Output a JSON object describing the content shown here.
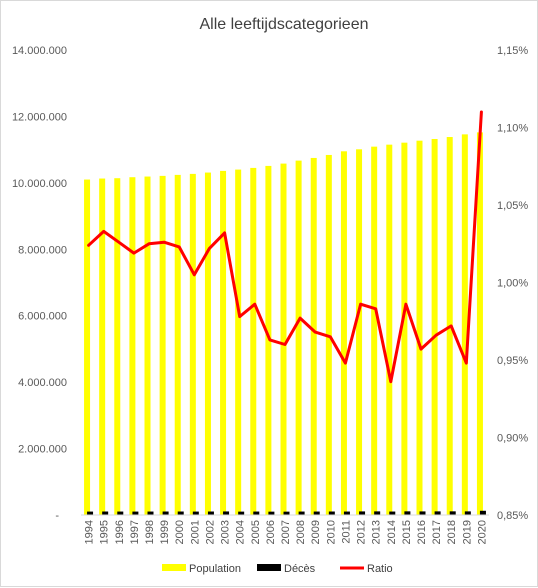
{
  "chart_data": {
    "type": "bar",
    "title": "Alle leeftijdscategorieen",
    "categories": [
      "1994",
      "1995",
      "1996",
      "1997",
      "1998",
      "1999",
      "2000",
      "2001",
      "2002",
      "2003",
      "2004",
      "2005",
      "2006",
      "2007",
      "2008",
      "2009",
      "2010",
      "2011",
      "2012",
      "2013",
      "2014",
      "2015",
      "2016",
      "2017",
      "2018",
      "2019",
      "2020"
    ],
    "left_axis": {
      "ylim": [
        0,
        14000000
      ],
      "ticks": [
        0,
        2000000,
        4000000,
        6000000,
        8000000,
        10000000,
        12000000,
        14000000
      ],
      "tick_labels": [
        "-",
        "2.000.000",
        "4.000.000",
        "6.000.000",
        "8.000.000",
        "10.000.000",
        "12.000.000",
        "14.000.000"
      ]
    },
    "right_axis": {
      "ylim": [
        0.85,
        1.15
      ],
      "ticks": [
        0.85,
        0.9,
        0.95,
        1.0,
        1.05,
        1.1,
        1.15
      ],
      "tick_labels": [
        "0,85%",
        "0,90%",
        "0,95%",
        "1,00%",
        "1,05%",
        "1,10%",
        "1,15%"
      ]
    },
    "series": [
      {
        "name": "Population",
        "type": "bar",
        "axis": "left",
        "color": "#ffff00",
        "values": [
          10100000,
          10130000,
          10140000,
          10170000,
          10190000,
          10210000,
          10240000,
          10270000,
          10310000,
          10360000,
          10400000,
          10450000,
          10510000,
          10580000,
          10670000,
          10750000,
          10840000,
          10950000,
          11010000,
          11090000,
          11150000,
          11210000,
          11270000,
          11320000,
          11380000,
          11460000,
          11520000
        ]
      },
      {
        "name": "Décès",
        "type": "bar",
        "axis": "left",
        "color": "#000000",
        "values": [
          103000,
          105000,
          104000,
          103000,
          104000,
          105000,
          105000,
          103000,
          105000,
          107000,
          102000,
          104000,
          101000,
          101000,
          104000,
          104000,
          105000,
          104000,
          108000,
          109000,
          104000,
          110000,
          108000,
          109000,
          110000,
          109000,
          127000
        ]
      },
      {
        "name": "Ratio",
        "type": "line",
        "axis": "right",
        "color": "#ff0000",
        "values": [
          1.024,
          1.033,
          1.026,
          1.019,
          1.025,
          1.026,
          1.023,
          1.005,
          1.022,
          1.032,
          0.978,
          0.986,
          0.963,
          0.96,
          0.977,
          0.968,
          0.965,
          0.948,
          0.986,
          0.983,
          0.936,
          0.986,
          0.957,
          0.966,
          0.972,
          0.948,
          1.11
        ]
      }
    ],
    "legend_position": "bottom",
    "grid": false
  }
}
